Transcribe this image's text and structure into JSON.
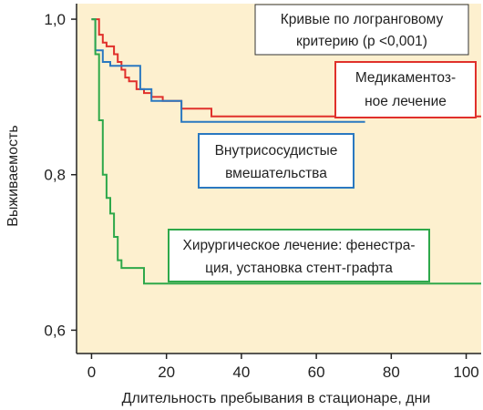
{
  "chart_data": {
    "type": "line",
    "step": true,
    "xlabel": "Длительность пребывания в стационаре, дни",
    "ylabel": "Выживаемость",
    "xlim": [
      -4,
      104
    ],
    "ylim": [
      0.57,
      1.02
    ],
    "xticks": [
      0,
      20,
      40,
      60,
      80,
      100
    ],
    "yticks": [
      0.6,
      0.8,
      1.0
    ],
    "ytick_labels": [
      "0,6",
      "0,8",
      "1,0"
    ],
    "grid": false,
    "background": "#fdf0cf",
    "series": [
      {
        "name": "Медикаментоз-ное лечение",
        "color": "#e0302b",
        "points": [
          [
            0,
            1.0
          ],
          [
            2,
            1.0
          ],
          [
            2,
            0.98
          ],
          [
            3,
            0.98
          ],
          [
            3,
            0.97
          ],
          [
            4,
            0.97
          ],
          [
            4,
            0.965
          ],
          [
            6,
            0.965
          ],
          [
            6,
            0.955
          ],
          [
            7,
            0.955
          ],
          [
            7,
            0.945
          ],
          [
            8,
            0.945
          ],
          [
            8,
            0.935
          ],
          [
            9,
            0.935
          ],
          [
            9,
            0.925
          ],
          [
            10,
            0.925
          ],
          [
            10,
            0.92
          ],
          [
            12,
            0.92
          ],
          [
            12,
            0.91
          ],
          [
            14,
            0.91
          ],
          [
            14,
            0.905
          ],
          [
            16,
            0.905
          ],
          [
            16,
            0.9
          ],
          [
            19,
            0.9
          ],
          [
            19,
            0.895
          ],
          [
            24,
            0.895
          ],
          [
            24,
            0.885
          ],
          [
            32,
            0.885
          ],
          [
            32,
            0.875
          ],
          [
            104,
            0.875
          ]
        ]
      },
      {
        "name": "Внутрисосудистые вмешательства",
        "color": "#2a78c0",
        "points": [
          [
            0,
            1.0
          ],
          [
            1,
            1.0
          ],
          [
            1,
            0.96
          ],
          [
            3,
            0.96
          ],
          [
            3,
            0.945
          ],
          [
            5,
            0.945
          ],
          [
            5,
            0.94
          ],
          [
            13,
            0.94
          ],
          [
            13,
            0.91
          ],
          [
            16,
            0.91
          ],
          [
            16,
            0.895
          ],
          [
            24,
            0.895
          ],
          [
            24,
            0.868
          ],
          [
            73,
            0.868
          ]
        ]
      },
      {
        "name": "Хирургическое лечение: фенестра-ция, установка стент-графта",
        "color": "#2ea84a",
        "points": [
          [
            0,
            1.0
          ],
          [
            1,
            1.0
          ],
          [
            1,
            0.955
          ],
          [
            2,
            0.955
          ],
          [
            2,
            0.87
          ],
          [
            3,
            0.87
          ],
          [
            3,
            0.8
          ],
          [
            4,
            0.8
          ],
          [
            4,
            0.77
          ],
          [
            5,
            0.77
          ],
          [
            5,
            0.75
          ],
          [
            6,
            0.75
          ],
          [
            6,
            0.72
          ],
          [
            7,
            0.72
          ],
          [
            7,
            0.69
          ],
          [
            8,
            0.69
          ],
          [
            8,
            0.68
          ],
          [
            14,
            0.68
          ],
          [
            14,
            0.66
          ],
          [
            104,
            0.66
          ]
        ]
      }
    ],
    "annotations": {
      "test": {
        "line1": "Кривые по логранговому",
        "line2": "критерию (р <0,001)"
      },
      "medical": {
        "line1": "Медикаментоз-",
        "line2": "ное лечение"
      },
      "endovascular": {
        "line1": "Внутрисосудистые",
        "line2": "вмешательства"
      },
      "surgical": {
        "line1": "Хирургическое лечение: фенестра-",
        "line2": "ция, установка стент-графта"
      }
    }
  }
}
